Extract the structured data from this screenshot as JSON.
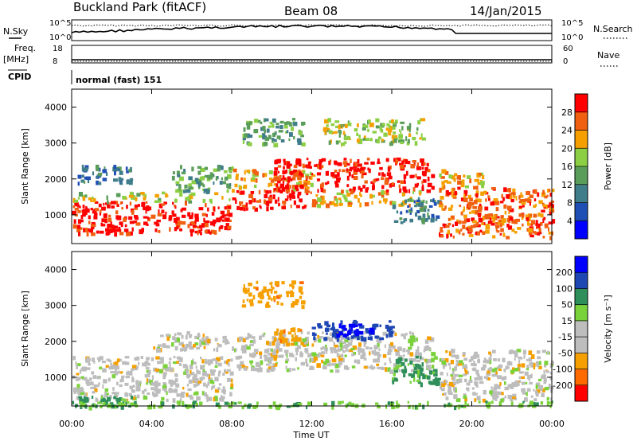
{
  "header": {
    "station": "Buckland Park (fitACF)",
    "beam": "Beam 08",
    "date": "14/Jan/2015"
  },
  "top_panels": {
    "nsky_label": "N.Sky",
    "nsky_top": "10^5",
    "nsky_bottom": "10^0",
    "nsearch_label": "N.Search",
    "nsearch_top": "10^5",
    "nsearch_bottom": "10^0",
    "freq_label": "Freq.",
    "freq_unit": "[MHz]",
    "freq_top": "18",
    "freq_bottom": "8",
    "nave_label": "Nave",
    "nave_top": "60",
    "nave_bottom": "0",
    "cpid_label": "CPID",
    "cpid_value": "normal (fast) 151"
  },
  "colors": {
    "power": [
      "#0000ff",
      "#1f4fb4",
      "#3f7d8a",
      "#5a9d5a",
      "#8ccf45",
      "#f5a000",
      "#f06010",
      "#ff0000"
    ],
    "velocity": [
      "#ff0000",
      "#ff6a00",
      "#f5a000",
      "#bdbdbd",
      "#bdbdbd",
      "#7ad23a",
      "#2f8f5a",
      "#1f47b4",
      "#0000ff"
    ],
    "ground_scatter": "#bdbdbd"
  },
  "chart_data": [
    {
      "type": "heatmap",
      "name": "power-panel",
      "ylabel": "Slant Range [km]",
      "xlabel": "",
      "ylim": [
        200,
        4500
      ],
      "xlim": [
        0,
        24
      ],
      "yticks": [
        "1000",
        "2000",
        "3000",
        "4000"
      ],
      "xticks": [],
      "colorbar": {
        "label": "Power [dB]",
        "ticks": [
          "4",
          "8",
          "12",
          "16",
          "20",
          "24",
          "28"
        ],
        "range": [
          0,
          32
        ]
      },
      "series": [
        {
          "start": 0.0,
          "end": 8.0,
          "rmin": 500,
          "rmax": 1400,
          "level": 7
        },
        {
          "start": 0.0,
          "end": 8.0,
          "rmin": 1400,
          "rmax": 1650,
          "level": 4
        },
        {
          "start": 0.3,
          "end": 3.0,
          "rmin": 1900,
          "rmax": 2400,
          "level": 2
        },
        {
          "start": 5.0,
          "end": 8.0,
          "rmin": 1700,
          "rmax": 2400,
          "level": 3
        },
        {
          "start": 8.0,
          "end": 12.0,
          "rmin": 1200,
          "rmax": 1700,
          "level": 7
        },
        {
          "start": 8.0,
          "end": 12.0,
          "rmin": 1700,
          "rmax": 2300,
          "level": 5
        },
        {
          "start": 8.5,
          "end": 11.5,
          "rmin": 3000,
          "rmax": 3700,
          "level": 3
        },
        {
          "start": 10.0,
          "end": 18.0,
          "rmin": 1700,
          "rmax": 2600,
          "level": 7
        },
        {
          "start": 12.0,
          "end": 17.5,
          "rmin": 1300,
          "rmax": 1700,
          "level": 5
        },
        {
          "start": 12.5,
          "end": 17.5,
          "rmin": 3000,
          "rmax": 3700,
          "level": 4
        },
        {
          "start": 16.0,
          "end": 18.3,
          "rmin": 800,
          "rmax": 1500,
          "level": 2
        },
        {
          "start": 18.3,
          "end": 24.0,
          "rmin": 400,
          "rmax": 1800,
          "level": 6
        },
        {
          "start": 18.3,
          "end": 20.5,
          "rmin": 1800,
          "rmax": 2300,
          "level": 5
        }
      ]
    },
    {
      "type": "heatmap",
      "name": "velocity-panel",
      "ylabel": "Slant Range [km]",
      "xlabel": "Time UT",
      "ylim": [
        200,
        4500
      ],
      "xlim": [
        0,
        24
      ],
      "yticks": [
        "1000",
        "2000",
        "3000",
        "4000"
      ],
      "xticks": [
        "00:00",
        "04:00",
        "08:00",
        "12:00",
        "16:00",
        "20:00",
        "00:00"
      ],
      "colorbar": {
        "label": "Velocity [m s⁻¹]",
        "ticks": [
          "-200",
          "-100",
          "-50",
          "-15",
          "15",
          "50",
          "100",
          "200"
        ],
        "range": [
          -250,
          250
        ]
      },
      "series": [
        {
          "start": 0.0,
          "end": 8.0,
          "rmin": 400,
          "rmax": 1600,
          "velocity": 0
        },
        {
          "start": 0.0,
          "end": 3.0,
          "rmin": 200,
          "rmax": 500,
          "velocity": 60
        },
        {
          "start": 4.0,
          "end": 8.0,
          "rmin": 1800,
          "rmax": 2300,
          "velocity": 0
        },
        {
          "start": 8.0,
          "end": 18.0,
          "rmin": 1200,
          "rmax": 2300,
          "velocity": 0
        },
        {
          "start": 8.5,
          "end": 11.5,
          "rmin": 3000,
          "rmax": 3700,
          "velocity": -60
        },
        {
          "start": 10.0,
          "end": 11.5,
          "rmin": 1900,
          "rmax": 2400,
          "velocity": -60
        },
        {
          "start": 12.0,
          "end": 16.0,
          "rmin": 2100,
          "rmax": 2600,
          "velocity": 120
        },
        {
          "start": 13.0,
          "end": 15.0,
          "rmin": 2200,
          "rmax": 2500,
          "velocity": 220
        },
        {
          "start": 16.0,
          "end": 18.3,
          "rmin": 800,
          "rmax": 1600,
          "velocity": 60
        },
        {
          "start": 18.3,
          "end": 24.0,
          "rmin": 400,
          "rmax": 1800,
          "velocity": 0
        },
        {
          "start": 0.0,
          "end": 24.0,
          "rmin": 200,
          "rmax": 350,
          "velocity": 40
        }
      ]
    }
  ]
}
